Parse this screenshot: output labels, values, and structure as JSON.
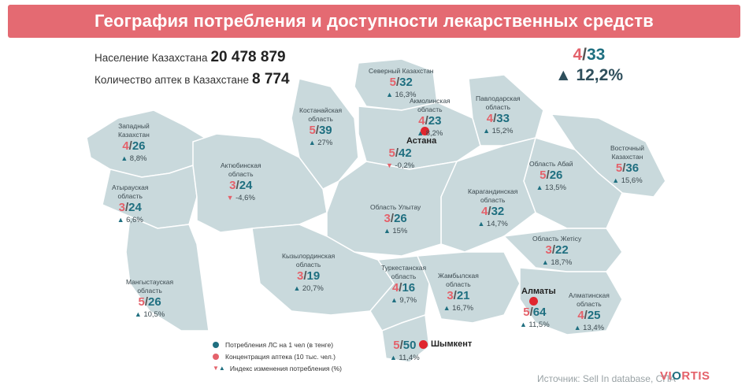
{
  "title": "География потребления и доступности лекарственных средств",
  "population_label": "Население Казахстана",
  "population_value": "20 478 879",
  "pharmacies_label": "Количество аптек в Казахстане",
  "pharmacies_value": "8 774",
  "country": {
    "concentration": "4",
    "consumption": "33",
    "index": "12,2%"
  },
  "regions": [
    {
      "id": "zapadny",
      "name": [
        "Западный",
        "Казахстан"
      ],
      "a": "4",
      "b": "26",
      "idx": "8,8%",
      "dir": "up"
    },
    {
      "id": "atyrau",
      "name": [
        "Атырауская",
        "область"
      ],
      "a": "3",
      "b": "24",
      "idx": "6,6%",
      "dir": "up"
    },
    {
      "id": "mangistau",
      "name": [
        "Мангыстауская",
        "область"
      ],
      "a": "5",
      "b": "26",
      "idx": "10,5%",
      "dir": "up"
    },
    {
      "id": "aktobe",
      "name": [
        "Актюбинская",
        "область"
      ],
      "a": "3",
      "b": "24",
      "idx": "-4,6%",
      "dir": "down"
    },
    {
      "id": "kostanay",
      "name": [
        "Костанайская",
        "область"
      ],
      "a": "5",
      "b": "39",
      "idx": "27%",
      "dir": "up"
    },
    {
      "id": "sever",
      "name": [
        "Северный Казахстан"
      ],
      "a": "5",
      "b": "32",
      "idx": "16,3%",
      "dir": "up"
    },
    {
      "id": "akmola",
      "name": [
        "Акмолинская",
        "область"
      ],
      "a": "4",
      "b": "23",
      "idx": "8,2%",
      "dir": "up"
    },
    {
      "id": "astana",
      "name": [],
      "a": "5",
      "b": "42",
      "idx": "-0,2%",
      "dir": "down"
    },
    {
      "id": "pavlodar",
      "name": [
        "Павлодарская",
        "область"
      ],
      "a": "4",
      "b": "33",
      "idx": "15,2%",
      "dir": "up"
    },
    {
      "id": "vostok",
      "name": [
        "Восточный",
        "Казахстан"
      ],
      "a": "5",
      "b": "36",
      "idx": "15,6%",
      "dir": "up"
    },
    {
      "id": "abay",
      "name": [
        "Область Абай"
      ],
      "a": "5",
      "b": "26",
      "idx": "13,5%",
      "dir": "up"
    },
    {
      "id": "karaganda",
      "name": [
        "Карагандинская",
        "область"
      ],
      "a": "4",
      "b": "32",
      "idx": "14,7%",
      "dir": "up"
    },
    {
      "id": "ulytau",
      "name": [
        "Область Улытау"
      ],
      "a": "3",
      "b": "26",
      "idx": "15%",
      "dir": "up"
    },
    {
      "id": "kyzylorda",
      "name": [
        "Кызылординская",
        "область"
      ],
      "a": "3",
      "b": "19",
      "idx": "20,7%",
      "dir": "up"
    },
    {
      "id": "turkestan",
      "name": [
        "Туркестанская",
        "область"
      ],
      "a": "4",
      "b": "16",
      "idx": "9,7%",
      "dir": "up"
    },
    {
      "id": "zhambyl",
      "name": [
        "Жамбылская",
        "область"
      ],
      "a": "3",
      "b": "21",
      "idx": "16,7%",
      "dir": "up"
    },
    {
      "id": "zhetysu",
      "name": [
        "Область Жетісу"
      ],
      "a": "3",
      "b": "22",
      "idx": "18,7%",
      "dir": "up"
    },
    {
      "id": "almaty_city",
      "name": [],
      "a": "5",
      "b": "64",
      "idx": "11,5%",
      "dir": "up"
    },
    {
      "id": "almaty_obl",
      "name": [
        "Алматинская",
        "область"
      ],
      "a": "4",
      "b": "25",
      "idx": "13,4%",
      "dir": "up"
    },
    {
      "id": "shymkent",
      "name": [],
      "a": "5",
      "b": "50",
      "idx": "11,4%",
      "dir": "up"
    }
  ],
  "cities": {
    "astana": "Астана",
    "almaty": "Алматы",
    "shymkent": "Шымкент"
  },
  "legend": [
    {
      "label": "Потребления ЛС на 1 чел (в тенге)",
      "color": "#1f6f80"
    },
    {
      "label": "Концентрация аптека (10 тыс. чел.)",
      "color": "#e4626b"
    },
    {
      "label": "Индекс изменения потребления (%)"
    }
  ],
  "source": "Источник: Sell In database, СПА",
  "logo": "VIORTIS",
  "colors": {
    "accent": "#e4626b",
    "teal": "#1f6f80",
    "region": "#c9d9dc"
  }
}
